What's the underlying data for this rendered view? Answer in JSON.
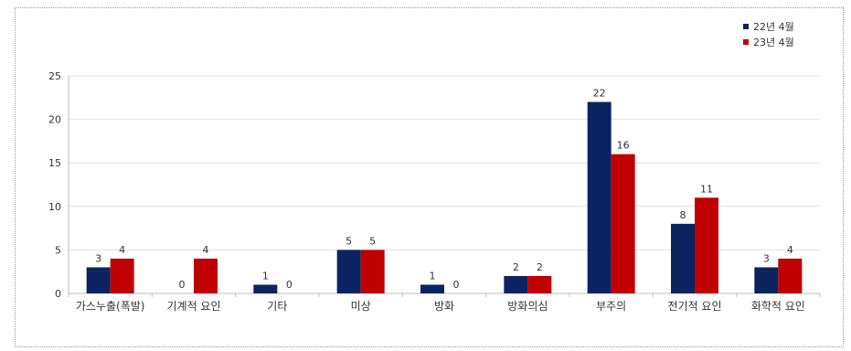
{
  "chart_data": {
    "type": "bar",
    "categories": [
      "가스누출(폭발)",
      "기계적 요인",
      "기타",
      "미상",
      "방화",
      "방화의심",
      "부주의",
      "전기적 요인",
      "화학적 요인"
    ],
    "series": [
      {
        "name": "22년 4월",
        "color": "#0b2461",
        "values": [
          3,
          0,
          1,
          5,
          1,
          2,
          22,
          8,
          3
        ]
      },
      {
        "name": "23년 4월",
        "color": "#c00000",
        "values": [
          4,
          4,
          0,
          5,
          0,
          2,
          16,
          11,
          4
        ]
      }
    ],
    "ylim": [
      0,
      25
    ],
    "yticks": [
      0,
      5,
      10,
      15,
      20,
      25
    ],
    "grid": true,
    "legend": "top-right",
    "title": "",
    "xlabel": "",
    "ylabel": ""
  }
}
